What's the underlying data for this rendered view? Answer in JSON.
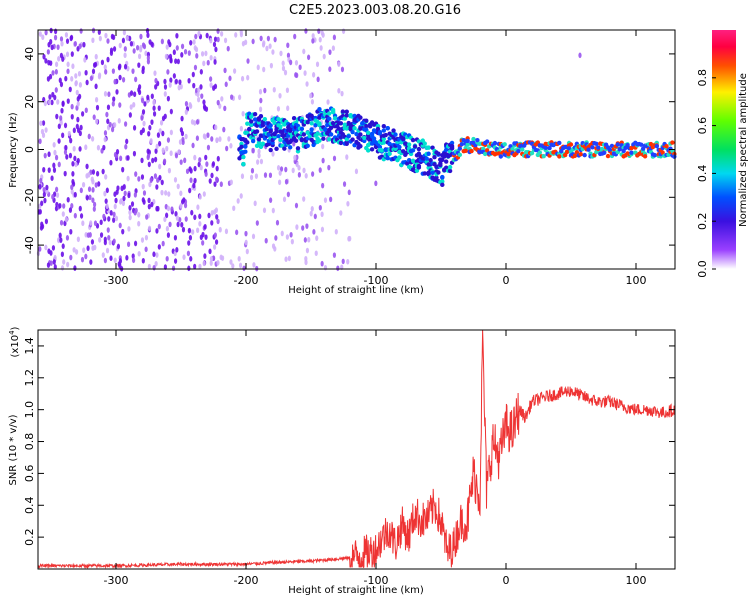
{
  "title": "C2E5.2023.003.08.20.G16",
  "chart_data": [
    {
      "type": "heatmap",
      "xlabel": "Height of straight line (km)",
      "ylabel": "Frequency (Hz)",
      "xlim": [
        -360,
        130
      ],
      "ylim": [
        -50,
        50
      ],
      "xticks": [
        -300,
        -200,
        -100,
        0,
        100
      ],
      "yticks": [
        -40,
        -20,
        0,
        20,
        40
      ],
      "colorbar": {
        "label": "Normalized spectral amplitude",
        "range": [
          0.0,
          1.0
        ],
        "ticks": [
          0.0,
          0.2,
          0.4,
          0.6,
          0.8
        ]
      },
      "ridge": [
        {
          "x": -200,
          "y": 10
        },
        {
          "x": -190,
          "y": 8
        },
        {
          "x": -180,
          "y": 6
        },
        {
          "x": -170,
          "y": 7
        },
        {
          "x": -160,
          "y": 6
        },
        {
          "x": -150,
          "y": 8
        },
        {
          "x": -140,
          "y": 11
        },
        {
          "x": -130,
          "y": 10
        },
        {
          "x": -120,
          "y": 9
        },
        {
          "x": -110,
          "y": 6
        },
        {
          "x": -100,
          "y": 4
        },
        {
          "x": -90,
          "y": 2
        },
        {
          "x": -80,
          "y": 0
        },
        {
          "x": -70,
          "y": -2
        },
        {
          "x": -60,
          "y": -4
        },
        {
          "x": -55,
          "y": -6
        },
        {
          "x": -50,
          "y": -10
        },
        {
          "x": -45,
          "y": -2
        },
        {
          "x": -40,
          "y": -3
        },
        {
          "x": -35,
          "y": 1
        },
        {
          "x": -30,
          "y": 2
        },
        {
          "x": -20,
          "y": 1
        },
        {
          "x": -10,
          "y": 0
        },
        {
          "x": 0,
          "y": 0
        },
        {
          "x": 130,
          "y": 0
        }
      ]
    },
    {
      "type": "line",
      "xlabel": "Height of straight line (km)",
      "ylabel": "SNR (10 * v/v)",
      "yscale_note": "(x10^4)",
      "xlim": [
        -360,
        130
      ],
      "ylim": [
        0,
        1.5
      ],
      "xticks": [
        -300,
        -200,
        -100,
        0,
        100
      ],
      "yticks": [
        0.2,
        0.4,
        0.6,
        0.8,
        1.0,
        1.2,
        1.4
      ],
      "series": [
        {
          "color": "#ee3333",
          "x": [
            -360,
            -300,
            -250,
            -200,
            -180,
            -150,
            -120,
            -110,
            -100,
            -95,
            -90,
            -85,
            -80,
            -75,
            -70,
            -65,
            -60,
            -55,
            -50,
            -45,
            -40,
            -35,
            -30,
            -25,
            -20,
            -18,
            -15,
            -10,
            -5,
            0,
            5,
            10,
            15,
            20,
            30,
            40,
            50,
            60,
            70,
            80,
            90,
            100,
            110,
            120,
            130
          ],
          "y": [
            0.02,
            0.02,
            0.03,
            0.03,
            0.04,
            0.05,
            0.07,
            0.09,
            0.12,
            0.2,
            0.25,
            0.15,
            0.28,
            0.2,
            0.35,
            0.3,
            0.32,
            0.4,
            0.3,
            0.1,
            0.15,
            0.3,
            0.28,
            0.6,
            0.45,
            1.48,
            0.5,
            0.8,
            0.7,
            0.9,
            0.85,
            1.0,
            0.95,
            1.05,
            1.08,
            1.1,
            1.12,
            1.08,
            1.05,
            1.05,
            1.02,
            1.0,
            1.0,
            0.98,
            1.0
          ]
        }
      ]
    }
  ]
}
